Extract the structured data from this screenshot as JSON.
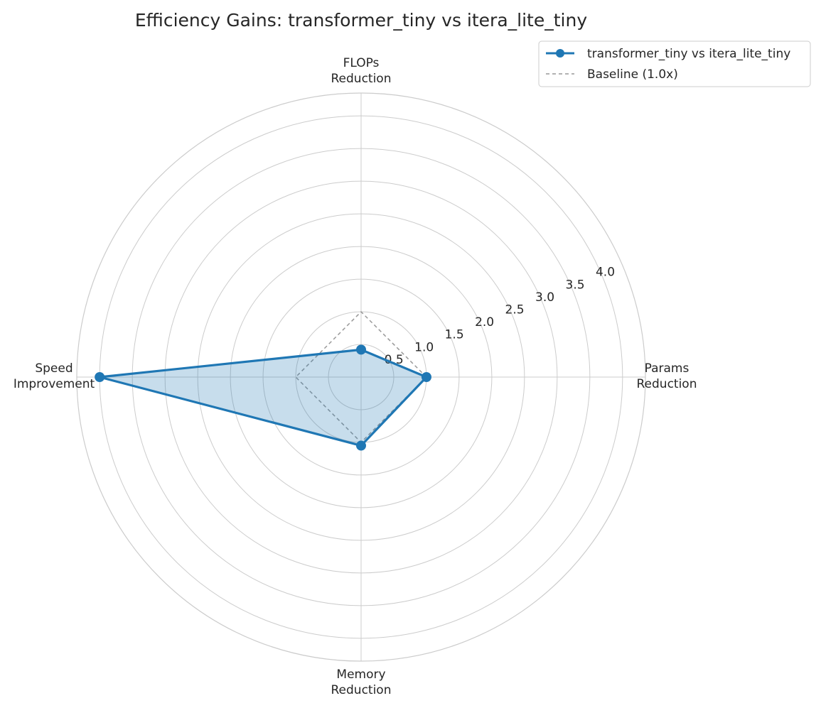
{
  "chart_data": {
    "type": "radar",
    "title": "Efficiency Gains: transformer_tiny vs itera_lite_tiny",
    "axes": [
      {
        "label_line1": "Params",
        "label_line2": "Reduction"
      },
      {
        "label_line1": "FLOPs",
        "label_line2": "Reduction"
      },
      {
        "label_line1": "Speed",
        "label_line2": "Improvement"
      },
      {
        "label_line1": "Memory",
        "label_line2": "Reduction"
      }
    ],
    "rlim": [
      0,
      4.35
    ],
    "rticks": [
      0.5,
      1.0,
      1.5,
      2.0,
      2.5,
      3.0,
      3.5,
      4.0
    ],
    "rtick_labels": [
      "0.5",
      "1.0",
      "1.5",
      "2.0",
      "2.5",
      "3.0",
      "3.5",
      "4.0"
    ],
    "grid": true,
    "legend_position": "top-right",
    "series": [
      {
        "name": "transformer_tiny vs itera_lite_tiny",
        "values": [
          1.0,
          0.42,
          4.0,
          1.05
        ],
        "color": "#1f77b4",
        "fill_color": "#1f77b4",
        "style": "solid-with-markers"
      },
      {
        "name": "Baseline (1.0x)",
        "values": [
          1.0,
          1.0,
          1.0,
          1.0
        ],
        "color": "#999999",
        "style": "dashed"
      }
    ]
  }
}
